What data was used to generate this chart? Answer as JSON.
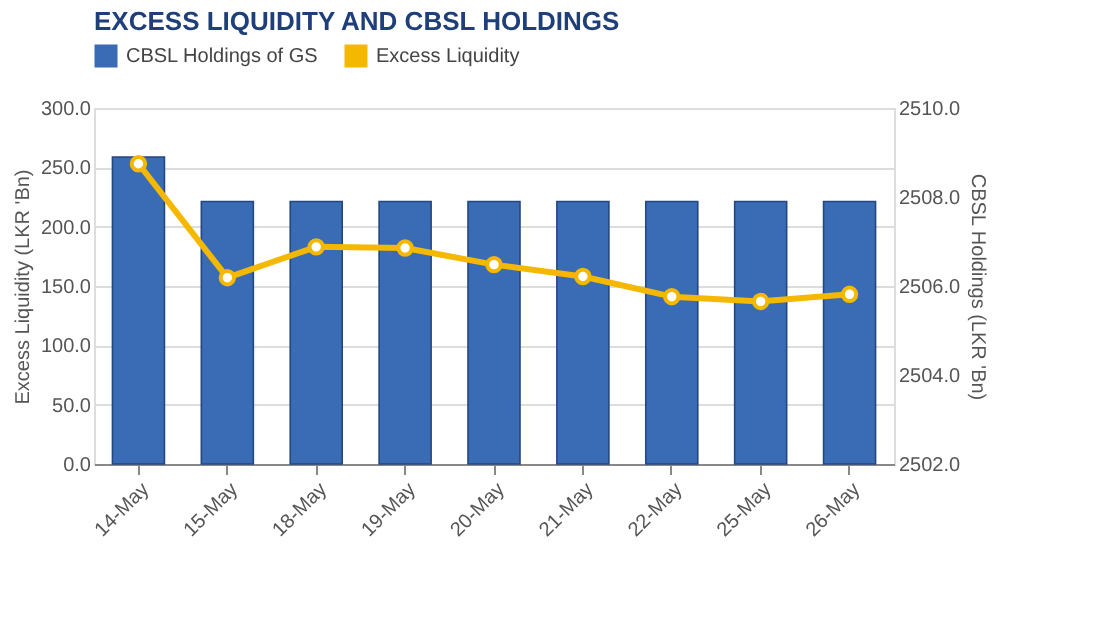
{
  "chart_data": {
    "type": "bar",
    "title": "EXCESS LIQUIDITY AND CBSL HOLDINGS",
    "categories": [
      "14-May",
      "15-May",
      "18-May",
      "19-May",
      "20-May",
      "21-May",
      "22-May",
      "25-May",
      "26-May"
    ],
    "series": [
      {
        "name": "CBSL Holdings of GS",
        "axis": "y2",
        "color": "#3a6bb5",
        "values": [
          2508.9,
          2507.9,
          2507.9,
          2507.9,
          2507.9,
          2507.9,
          2507.9,
          2507.9,
          2507.9
        ]
      },
      {
        "name": "Excess Liquidity",
        "type": "line",
        "axis": "y",
        "color": "#f5b800",
        "values": [
          253,
          157,
          183,
          182,
          168,
          158,
          141,
          137,
          143
        ]
      }
    ],
    "ylabel": "Excess Liquidity (LKR 'Bn)",
    "y2label": "CBSL Holdings (LKR 'Bn)",
    "ylim": [
      0,
      300
    ],
    "yticks": [
      {
        "value": 0,
        "label": "0.0"
      },
      {
        "value": 50,
        "label": "50.0"
      },
      {
        "value": 100,
        "label": "100.0"
      },
      {
        "value": 150,
        "label": "150.0"
      },
      {
        "value": 200,
        "label": "200.0"
      },
      {
        "value": 250,
        "label": "250.0"
      },
      {
        "value": 300,
        "label": "300.0"
      }
    ],
    "y2lim": [
      2502,
      2510
    ],
    "y2ticks": [
      {
        "value": 2502,
        "label": "2502.0"
      },
      {
        "value": 2504,
        "label": "2504.0"
      },
      {
        "value": 2506,
        "label": "2506.0"
      },
      {
        "value": 2508,
        "label": "2508.0"
      },
      {
        "value": 2510,
        "label": "2510.0"
      }
    ],
    "grid": "y",
    "legend": "top",
    "marker": "circle",
    "line_style": "solid"
  }
}
